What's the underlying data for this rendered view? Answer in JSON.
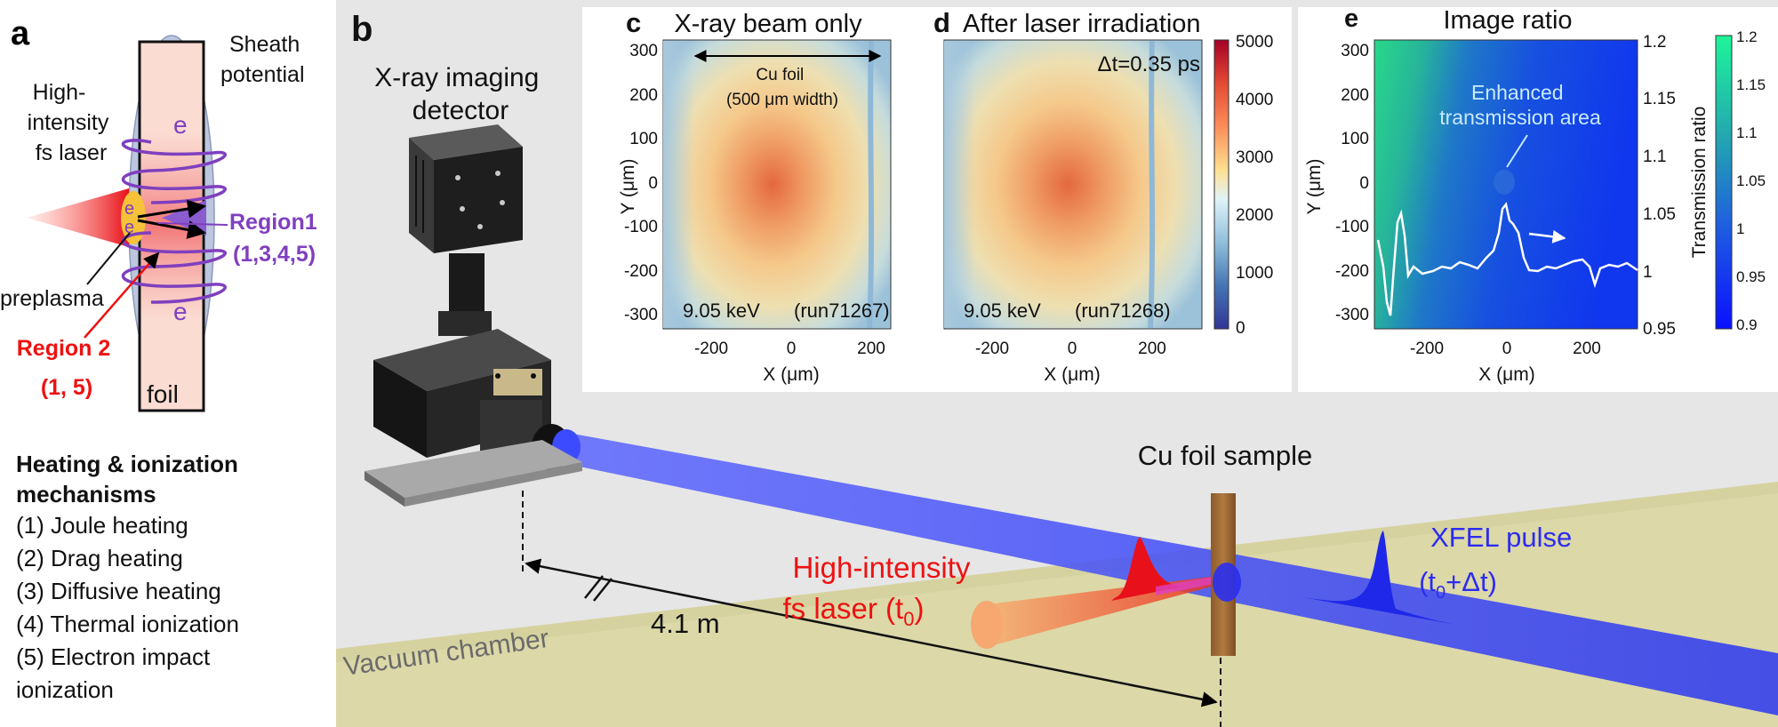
{
  "colors": {
    "laser_red": "#ee1111",
    "region1_purple": "#7f3fbf",
    "xray_blue": "#2c2cf0",
    "floor": "#dcd8a8",
    "background_grey": "#e6e6e6",
    "foil_pink": "#fbdcd2"
  },
  "panel_a": {
    "letter": "a",
    "sheath_label": [
      "Sheath",
      "potential"
    ],
    "laser_label": [
      "High-",
      "intensity",
      "fs laser"
    ],
    "electron_symbol": "e",
    "region1_label": [
      "Region1",
      "(1,3,4,5)"
    ],
    "preplasma_label": "preplasma",
    "region2_label": [
      "Region 2",
      "(1, 5)"
    ],
    "foil_label": "foil"
  },
  "mechanisms": {
    "heading": [
      "Heating & ionization",
      "mechanisms"
    ],
    "items": [
      "(1) Joule heating",
      "(2) Drag heating",
      "(3) Diffusive heating",
      "(4) Thermal ionization",
      "(5) Electron impact",
      "ionization"
    ]
  },
  "panel_b": {
    "letter": "b",
    "detector_label": [
      "X-ray imaging",
      "detector"
    ],
    "sample_label": "Cu foil sample",
    "laser_label": [
      "High-intensity",
      "fs laser (t",
      "0",
      ")"
    ],
    "xfel_label": [
      "XFEL pulse",
      "(t",
      "0",
      "+Δt)"
    ],
    "distance_label": "4.1 m",
    "chamber_label": "Vacuum chamber"
  },
  "panel_c": {
    "letter": "c",
    "title": "X-ray beam only",
    "foil_annotation": [
      "Cu foil",
      "(500 μm width)"
    ],
    "energy_label": "9.05 keV",
    "run_label": "(run71267)",
    "ylabel": "Y (μm)",
    "xlabel": "X (μm)"
  },
  "panel_d": {
    "letter": "d",
    "title": "After laser irradiation",
    "delay_label": "Δt=0.35 ps",
    "energy_label": "9.05 keV",
    "run_label": "(run71268)",
    "xlabel": "X (μm)"
  },
  "colorbar_cd": {
    "ticks": [
      "5000",
      "4000",
      "3000",
      "2000",
      "1000",
      "0"
    ]
  },
  "panel_e": {
    "letter": "e",
    "title": "Image ratio",
    "annotation": [
      "Enhanced",
      "transmission area"
    ],
    "ylabel": "Y (μm)",
    "xlabel": "X (μm)",
    "right_axis_ticks": [
      "1.2",
      "1.15",
      "1.1",
      "1.05",
      "1",
      "0.95"
    ],
    "colorbar_ticks": [
      "1.2",
      "1.15",
      "1.1",
      "1.05",
      "1",
      "0.95",
      "0.9"
    ],
    "colorbar_label": "Transmission ratio"
  },
  "image_axes": {
    "y_ticks": [
      "300",
      "200",
      "100",
      "0",
      "-100",
      "-200",
      "-300"
    ],
    "x_ticks": [
      "-200",
      "0",
      "200"
    ]
  }
}
